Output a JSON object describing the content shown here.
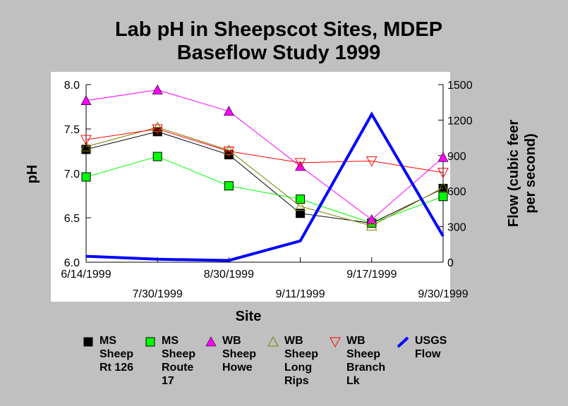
{
  "chart_data": {
    "type": "line",
    "title_lines": [
      "Lab pH in Sheepscot Sites, MDEP",
      "Baseflow Study 1999"
    ],
    "xlabel": "Site",
    "ylabel": "pH",
    "y2label_lines": [
      "Flow (cubic feer",
      "per second)"
    ],
    "categories": [
      "6/14/1999",
      "7/30/1999",
      "8/30/1999",
      "9/11/1999",
      "9/17/1999",
      "9/30/1999"
    ],
    "ylim": [
      6.0,
      8.0
    ],
    "y_ticks": [
      "6.0",
      "6.5",
      "7.0",
      "7.5",
      "8.0"
    ],
    "y2lim": [
      0,
      1500
    ],
    "y2_ticks": [
      "0",
      "300",
      "600",
      "900",
      "1200",
      "1500"
    ],
    "grid": false,
    "legend_position": "bottom",
    "series": [
      {
        "name_lines": [
          "MS",
          "Sheep",
          "Rt 126"
        ],
        "marker": "square",
        "color": "#000000",
        "fill": "#000000",
        "axis": "left",
        "values": [
          7.27,
          7.47,
          7.21,
          6.55,
          6.44,
          6.83
        ]
      },
      {
        "name_lines": [
          "MS",
          "Sheep",
          "Route",
          "17"
        ],
        "marker": "square",
        "color": "#00ff00",
        "fill": "#00ff00",
        "axis": "left",
        "values": [
          6.96,
          7.19,
          6.86,
          6.71,
          6.44,
          6.74
        ]
      },
      {
        "name_lines": [
          "WB",
          "Sheep",
          "Howe"
        ],
        "marker": "triangle-up",
        "color": "#ff00ff",
        "fill": "#ff00ff",
        "axis": "left",
        "values": [
          7.82,
          7.94,
          7.7,
          7.08,
          6.48,
          7.18
        ]
      },
      {
        "name_lines": [
          "WB",
          "Sheep",
          "Long",
          "Rips"
        ],
        "marker": "triangle-up-open",
        "color": "#808000",
        "fill": "none",
        "axis": "left",
        "values": [
          7.3,
          7.52,
          7.26,
          6.63,
          6.41,
          6.84
        ]
      },
      {
        "name_lines": [
          "WB",
          "Sheep",
          "Branch",
          "Lk"
        ],
        "marker": "triangle-down-open",
        "color": "#ff0000",
        "fill": "none",
        "axis": "left",
        "values": [
          7.38,
          7.5,
          7.25,
          7.12,
          7.14,
          7.01
        ]
      },
      {
        "name_lines": [
          "USGS",
          "Flow"
        ],
        "marker": "none",
        "color": "#0000ff",
        "fill": "none",
        "axis": "right",
        "values": [
          50,
          25,
          15,
          180,
          1250,
          220
        ]
      }
    ]
  }
}
